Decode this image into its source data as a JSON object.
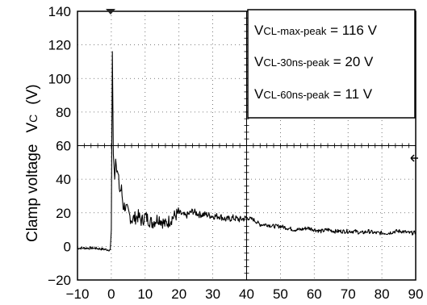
{
  "chart_data": {
    "type": "line",
    "title": "",
    "xlabel": "",
    "ylabel_main": "Clamp voltage",
    "ylabel_symbol": "V",
    "ylabel_symbol_sub": "C",
    "ylabel_unit": "(V)",
    "xlim": [
      -10,
      90
    ],
    "ylim": [
      -20,
      140
    ],
    "x_ticks": [
      "−10",
      "0",
      "10",
      "20",
      "30",
      "40",
      "50",
      "60",
      "70",
      "80",
      "90"
    ],
    "y_ticks": [
      "−20",
      "0",
      "20",
      "40",
      "60",
      "80",
      "100",
      "120",
      "140"
    ],
    "grid": "dotted, 10 x-divisions and 8 y-divisions",
    "legend_placement": "top-right",
    "annotations": [
      {
        "prefix": "V",
        "sub": "CL-max-peak",
        "value": " = 116 V"
      },
      {
        "prefix": "V",
        "sub": "CL-30ns-peak",
        "value": " = 20 V"
      },
      {
        "prefix": "V",
        "sub": "CL-60ns-peak",
        "value": " = 11 V"
      }
    ],
    "series": [
      {
        "x": [
          -10,
          -5,
          -1,
          -0.3,
          0,
          0.3,
          0.6,
          1,
          1.3,
          1.6,
          2,
          2.5,
          3,
          3.5,
          4,
          5,
          6,
          7,
          8,
          9,
          10,
          12,
          14,
          16,
          18,
          20,
          22,
          24,
          26,
          28,
          30,
          32,
          34,
          36,
          38,
          40,
          42,
          44,
          46,
          48,
          50,
          52,
          54,
          56,
          58,
          60,
          62,
          64,
          66,
          68,
          70,
          72,
          74,
          76,
          78,
          80,
          82,
          84,
          86,
          88,
          90
        ],
        "y": [
          -1,
          -1,
          -2,
          -2,
          10,
          116,
          55,
          40,
          52,
          45,
          42,
          33,
          34,
          24,
          24,
          20,
          16,
          17,
          18,
          15,
          18,
          14,
          17,
          13,
          17,
          20,
          18,
          21,
          19,
          19,
          18,
          18,
          16,
          17,
          16,
          17,
          16,
          13,
          13,
          12,
          12,
          11,
          10,
          10,
          11,
          10,
          9,
          10,
          9,
          9,
          9,
          9,
          8,
          9,
          8,
          8,
          8,
          9,
          9,
          8,
          8
        ]
      }
    ]
  }
}
